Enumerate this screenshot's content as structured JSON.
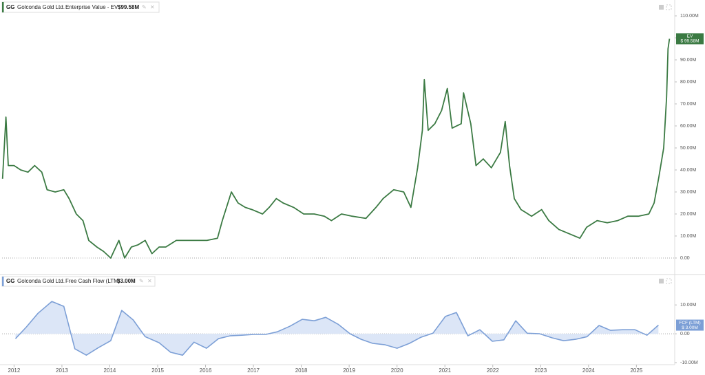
{
  "chart_data": [
    {
      "type": "line",
      "ticker": "GG",
      "company": "Golconda Gold Ltd.",
      "header_value": "$99.58M",
      "badge_label": "EV",
      "badge_value": "$ 99.58M",
      "x": [
        2011.76,
        2011.83,
        2011.88,
        2012.0,
        2012.14,
        2012.29,
        2012.43,
        2012.58,
        2012.69,
        2012.86,
        2013.04,
        2013.15,
        2013.3,
        2013.44,
        2013.56,
        2013.73,
        2013.87,
        2014.02,
        2014.19,
        2014.31,
        2014.45,
        2014.59,
        2014.74,
        2014.88,
        2015.03,
        2015.17,
        2015.39,
        2015.6,
        2015.82,
        2016.03,
        2016.25,
        2016.35,
        2016.54,
        2016.68,
        2016.83,
        2016.97,
        2017.19,
        2017.33,
        2017.48,
        2017.62,
        2017.84,
        2018.05,
        2018.27,
        2018.48,
        2018.63,
        2018.84,
        2019.06,
        2019.35,
        2019.56,
        2019.71,
        2019.93,
        2020.14,
        2020.29,
        2020.43,
        2020.53,
        2020.57,
        2020.65,
        2020.79,
        2020.93,
        2021.05,
        2021.15,
        2021.34,
        2021.39,
        2021.54,
        2021.65,
        2021.8,
        2021.97,
        2022.16,
        2022.26,
        2022.35,
        2022.45,
        2022.59,
        2022.81,
        2023.02,
        2023.17,
        2023.38,
        2023.6,
        2023.82,
        2023.96,
        2024.18,
        2024.39,
        2024.61,
        2024.82,
        2025.04,
        2025.26,
        2025.37,
        2025.47,
        2025.57,
        2025.63,
        2025.66,
        2025.69
      ],
      "series": [
        {
          "name": "Enterprise Value - EV",
          "color": "#3b7a43",
          "values": [
            36,
            64,
            42,
            42,
            40,
            39,
            42,
            39,
            31,
            30,
            31,
            27,
            20,
            17,
            8,
            5,
            3,
            0,
            8,
            0,
            5,
            6,
            8,
            2,
            5,
            5,
            8,
            8,
            8,
            8,
            9,
            17,
            30,
            25,
            23,
            22,
            20,
            23,
            27,
            25,
            23,
            20,
            20,
            19,
            17,
            20,
            19,
            18,
            23,
            27,
            31,
            30,
            23,
            41,
            58,
            81,
            58,
            61,
            67,
            77,
            59,
            61,
            75,
            61,
            42,
            45,
            41,
            48,
            62,
            42,
            27,
            22,
            19,
            22,
            17,
            13,
            11,
            9,
            14,
            17,
            16,
            17,
            19,
            19,
            20,
            25,
            37,
            50,
            73,
            95,
            99.58
          ]
        }
      ],
      "xlim": [
        2011.75,
        2025.8
      ],
      "ylim": [
        -7.2,
        114.7
      ],
      "yticks": [
        {
          "value": 0,
          "label": "0.00"
        },
        {
          "value": 10,
          "label": "10.00M"
        },
        {
          "value": 20,
          "label": "20.00M"
        },
        {
          "value": 30,
          "label": "30.00M"
        },
        {
          "value": 40,
          "label": "40.00M"
        },
        {
          "value": 50,
          "label": "50.00M"
        },
        {
          "value": 60,
          "label": "60.00M"
        },
        {
          "value": 70,
          "label": "70.00M"
        },
        {
          "value": 80,
          "label": "80.00M"
        },
        {
          "value": 90,
          "label": "90.00M"
        },
        {
          "value": 100,
          "label": "100.00M"
        },
        {
          "value": 110,
          "label": "110.00M"
        }
      ]
    },
    {
      "type": "area",
      "ticker": "GG",
      "company": "Golconda Gold Ltd.",
      "header_value": "$3.00M",
      "badge_label": "FCF (LTM)",
      "badge_value": "$ 3.00M",
      "x": [
        2012.03,
        2012.26,
        2012.5,
        2012.79,
        2013.04,
        2013.27,
        2013.51,
        2013.76,
        2014.02,
        2014.25,
        2014.49,
        2014.74,
        2015.03,
        2015.27,
        2015.52,
        2015.76,
        2016.02,
        2016.27,
        2016.51,
        2016.76,
        2017.01,
        2017.26,
        2017.5,
        2017.76,
        2018.02,
        2018.27,
        2018.51,
        2018.77,
        2019.02,
        2019.25,
        2019.49,
        2019.75,
        2020.0,
        2020.26,
        2020.5,
        2020.75,
        2021.01,
        2021.24,
        2021.48,
        2021.73,
        2021.99,
        2022.23,
        2022.48,
        2022.72,
        2022.98,
        2023.24,
        2023.48,
        2023.73,
        2023.97,
        2024.22,
        2024.46,
        2024.71,
        2024.97,
        2025.22,
        2025.46
      ],
      "series": [
        {
          "name": "Free Cash Flow (LTM)",
          "color": "#7c9fd6",
          "values": [
            -1.7,
            2.4,
            7.1,
            11.2,
            9.5,
            -5.2,
            -7.4,
            -4.8,
            -2.4,
            8.1,
            4.8,
            -1.0,
            -3.1,
            -6.4,
            -7.4,
            -2.9,
            -5.0,
            -1.7,
            -0.7,
            -0.5,
            -0.2,
            -0.2,
            0.7,
            2.6,
            5.0,
            4.5,
            5.7,
            3.3,
            0,
            -1.9,
            -3.3,
            -3.8,
            -5.0,
            -3.3,
            -1.2,
            0.2,
            6.0,
            7.4,
            -0.7,
            1.4,
            -2.6,
            -2.1,
            4.5,
            0.2,
            0,
            -1.4,
            -2.4,
            -1.9,
            -1.0,
            2.9,
            1.2,
            1.4,
            1.4,
            -0.5,
            3.0
          ]
        }
      ],
      "xlim": [
        2011.75,
        2025.8
      ],
      "ylim": [
        -10.7,
        16
      ],
      "yticks": [
        {
          "value": -10,
          "label": "-10.00M"
        },
        {
          "value": 0,
          "label": "0.00"
        },
        {
          "value": 10,
          "label": "10.00M"
        }
      ],
      "xticks": [
        2012,
        2013,
        2014,
        2015,
        2016,
        2017,
        2018,
        2019,
        2020,
        2021,
        2022,
        2023,
        2024,
        2025
      ]
    }
  ]
}
